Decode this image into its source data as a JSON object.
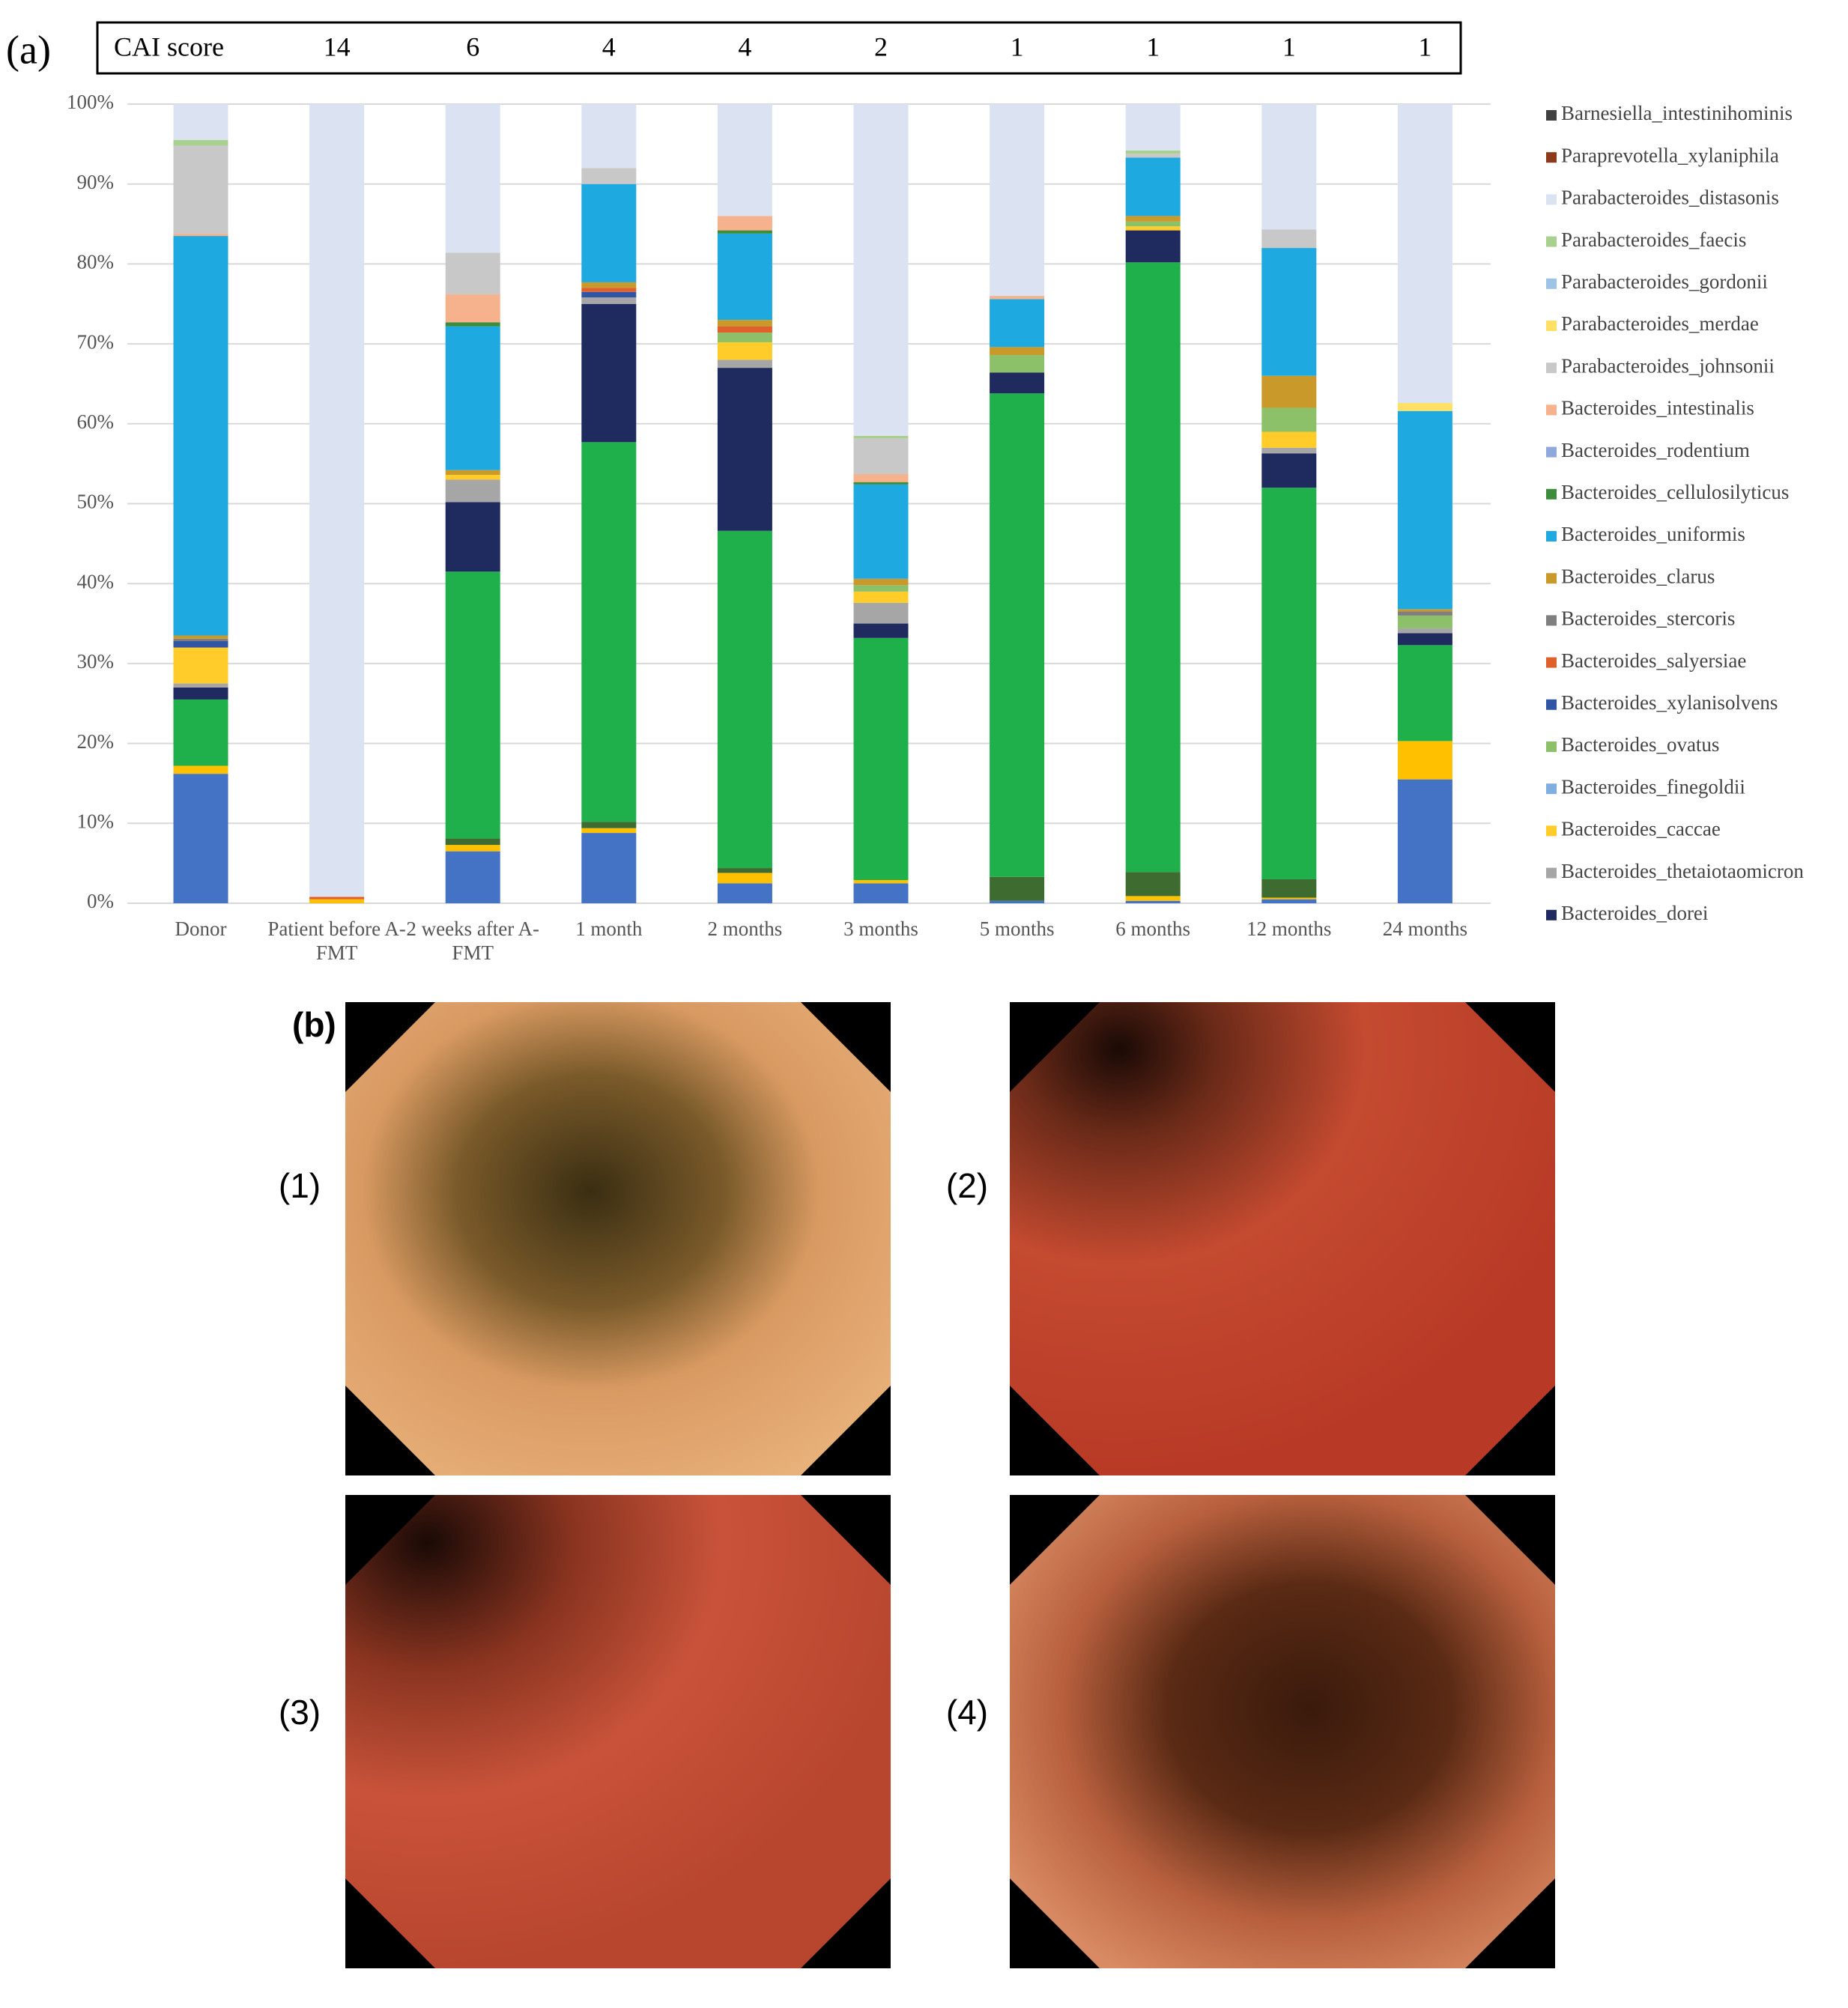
{
  "panel_a_label": "(a)",
  "panel_b_label": "(b)",
  "photos": [
    "(1)",
    "(2)",
    "(3)",
    "(4)"
  ],
  "chart_data": {
    "type": "bar",
    "stacked": true,
    "grid": true,
    "legend": "right",
    "cai_score": {
      "label": "CAI score",
      "values": [
        null,
        14,
        6,
        4,
        4,
        2,
        1,
        1,
        1,
        1
      ]
    },
    "categories": [
      "Donor",
      "Patient before A-FMT",
      "2 weeks after A-FMT",
      "1 month",
      "2 months",
      "3 months",
      "5 months",
      "6 months",
      "12 months",
      "24 months"
    ],
    "ylim": [
      0,
      100
    ],
    "yticks": [
      {
        "value": 0,
        "label": "0%"
      },
      {
        "value": 10,
        "label": "10%"
      },
      {
        "value": 20,
        "label": "20%"
      },
      {
        "value": 30,
        "label": "30%"
      },
      {
        "value": 40,
        "label": "40%"
      },
      {
        "value": 50,
        "label": "50%"
      },
      {
        "value": 60,
        "label": "60%"
      },
      {
        "value": 70,
        "label": "70%"
      },
      {
        "value": 80,
        "label": "80%"
      },
      {
        "value": 90,
        "label": "90%"
      },
      {
        "value": 100,
        "label": "100%"
      }
    ],
    "series": [
      {
        "color": "#4472c4",
        "values": [
          16.2,
          0,
          6.5,
          8.8,
          2.5,
          2.5,
          0.3,
          0.3,
          0.5,
          15.5
        ]
      },
      {
        "color": "#ffc000",
        "values": [
          1,
          0.5,
          0.8,
          0.6,
          1.3,
          0.4,
          0,
          0.6,
          0.2,
          4.8
        ]
      },
      {
        "color": "#3e6b30",
        "values": [
          0,
          0,
          0.8,
          0.8,
          0.6,
          0,
          3,
          3,
          2.3,
          0
        ]
      },
      {
        "color": "#1fb04c",
        "values": [
          8.3,
          0,
          33.4,
          47.5,
          42.2,
          30.3,
          60.5,
          76.3,
          49,
          12
        ]
      },
      {
        "name": "Bacteroides_dorei",
        "color": "#1f2a5e",
        "values": [
          1.5,
          0,
          8.7,
          17.3,
          20.4,
          1.8,
          2.6,
          4,
          4.3,
          1.5
        ]
      },
      {
        "name": "Bacteroides_thetaiotaomicron",
        "color": "#a6a6a6",
        "values": [
          0.5,
          0,
          2.8,
          0.8,
          1,
          2.6,
          0,
          0,
          0.7,
          0.6
        ]
      },
      {
        "name": "Bacteroides_caccae",
        "color": "#ffcc29",
        "values": [
          4.5,
          0,
          0.6,
          0,
          2.2,
          1.4,
          0,
          0.5,
          2,
          0
        ]
      },
      {
        "name": "Bacteroides_finegoldii",
        "color": "#7faee0",
        "values": [
          0,
          0,
          0,
          0,
          0,
          0,
          0,
          0,
          0,
          0
        ]
      },
      {
        "name": "Bacteroides_ovatus",
        "color": "#8cc16a",
        "values": [
          0,
          0,
          0,
          0,
          1.2,
          0.8,
          2.2,
          0.6,
          3,
          1.6
        ]
      },
      {
        "name": "Bacteroides_xylanisolvens",
        "color": "#2f55a4",
        "values": [
          0.8,
          0,
          0,
          0.7,
          0,
          0,
          0,
          0,
          0,
          0
        ]
      },
      {
        "name": "Bacteroides_salyersiae",
        "color": "#e0602b",
        "values": [
          0,
          0.3,
          0,
          0.5,
          0.8,
          0,
          0,
          0,
          0,
          0
        ]
      },
      {
        "name": "Bacteroides_stercoris",
        "color": "#7f7f7f",
        "values": [
          0.3,
          0,
          0,
          0,
          0,
          0,
          0,
          0,
          0,
          0.5
        ]
      },
      {
        "name": "Bacteroides_clarus",
        "color": "#c9992a",
        "values": [
          0.4,
          0,
          0.6,
          0.7,
          0.8,
          0.8,
          1,
          0.7,
          4,
          0.3
        ]
      },
      {
        "name": "Bacteroides_uniformis",
        "color": "#1fa9e1",
        "values": [
          50,
          0,
          18,
          12.3,
          10.8,
          11.8,
          6,
          7.3,
          16,
          24.8
        ]
      },
      {
        "name": "Bacteroides_cellulosilyticus",
        "color": "#3c8c3c",
        "values": [
          0,
          0,
          0.5,
          0,
          0.4,
          0.3,
          0,
          0,
          0,
          0
        ]
      },
      {
        "name": "Bacteroides_rodentium",
        "color": "#8fa9dc",
        "values": [
          0,
          0,
          0,
          0,
          0,
          0,
          0,
          0,
          0,
          0
        ]
      },
      {
        "name": "Bacteroides_intestinalis",
        "color": "#f5b28c",
        "values": [
          0.3,
          0,
          3.5,
          0,
          1.8,
          1,
          0.4,
          0,
          0,
          0
        ]
      },
      {
        "name": "Parabacteroides_johnsonii",
        "color": "#c8c8c8",
        "values": [
          11,
          0,
          5.2,
          2,
          0,
          4.5,
          0,
          0.5,
          2.3,
          0
        ]
      },
      {
        "name": "Parabacteroides_merdae",
        "color": "#ffe066",
        "values": [
          0,
          0,
          0,
          0,
          0,
          0,
          0,
          0,
          0,
          1
        ]
      },
      {
        "name": "Parabacteroides_gordonii",
        "color": "#9dc3e6",
        "values": [
          0,
          0,
          0,
          0,
          0,
          0,
          0,
          0,
          0,
          0
        ]
      },
      {
        "name": "Parabacteroides_faecis",
        "color": "#a9d18e",
        "values": [
          0.7,
          0,
          0,
          0,
          0,
          0.3,
          0,
          0.4,
          0,
          0
        ]
      },
      {
        "name": "Parabacteroides_distasonis",
        "color": "#dbe3f3",
        "values": [
          4.5,
          99.2,
          18.6,
          8,
          14,
          41.5,
          24,
          5.8,
          15.7,
          37.4
        ]
      },
      {
        "name": "Paraprevotella_xylaniphila",
        "color": "#8b3a1a",
        "values": [
          0,
          0,
          0,
          0,
          0,
          0,
          0,
          0,
          0,
          0
        ]
      },
      {
        "name": "Barnesiella_intestinihominis",
        "color": "#404040",
        "values": [
          0,
          0,
          0,
          0,
          0,
          0,
          0,
          0,
          0,
          0
        ]
      }
    ]
  }
}
